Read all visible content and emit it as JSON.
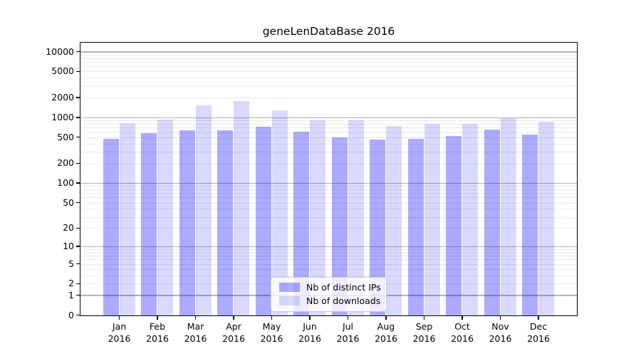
{
  "figure": {
    "background": "#ffffff",
    "text_color": "#000000",
    "spine_color": "#000000",
    "grid_major_color": "#b3b3b3",
    "grid_minor_color": "#e9e9e9",
    "legend_border_color": "#cccccc"
  },
  "chart_data": {
    "type": "bar",
    "title": "geneLenDataBase 2016",
    "xlabel": "",
    "ylabel": "",
    "categories": [
      "Jan",
      "Feb",
      "Mar",
      "Apr",
      "May",
      "Jun",
      "Jul",
      "Aug",
      "Sep",
      "Oct",
      "Nov",
      "Dec"
    ],
    "x_tick_year": "2016",
    "series": [
      {
        "name": "Nb of distinct IPs",
        "color": "#0000ff",
        "opacity": 0.33,
        "values": [
          480,
          590,
          650,
          650,
          730,
          610,
          510,
          470,
          485,
          535,
          660,
          550
        ]
      },
      {
        "name": "Nb of downloads",
        "color": "#0000ff",
        "opacity": 0.15,
        "values": [
          830,
          950,
          1550,
          1800,
          1300,
          920,
          925,
          760,
          800,
          810,
          1000,
          880
        ]
      }
    ],
    "y_scale": "log10(1+y)",
    "y_tick_values": [
      0,
      1,
      2,
      5,
      10,
      20,
      50,
      100,
      200,
      500,
      1000,
      2000,
      5000,
      10000
    ],
    "ylim": [
      0,
      13500
    ],
    "grid": true,
    "grid_major_at": [
      1,
      10,
      100,
      1000,
      10000
    ],
    "legend_position": "lower center inside plot"
  }
}
